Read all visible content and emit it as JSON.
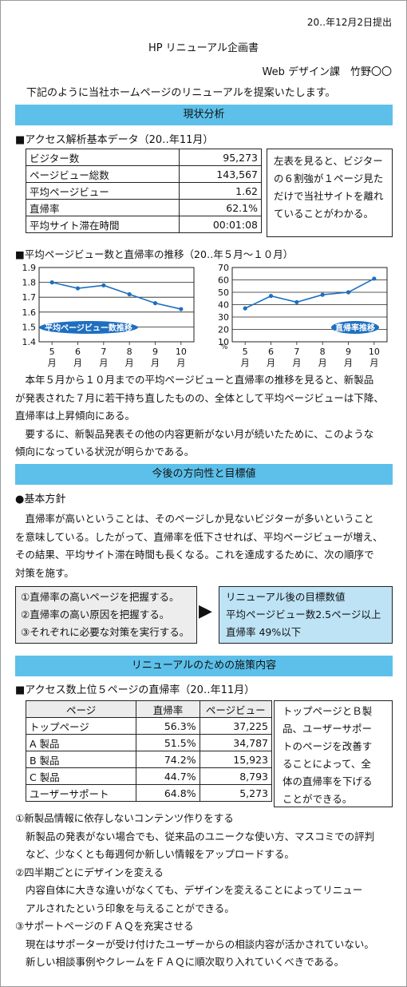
{
  "header": {
    "date": "20‥年12月2日提出",
    "title": "HP リニューアル企画書",
    "author": "Web デザイン課　竹野〇〇",
    "intro": "下記のように当社ホームページのリニューアルを提案いたします。"
  },
  "section1": {
    "heading": "現状分析",
    "table_title": "■アクセス解析基本データ（20‥年11月）",
    "rows": [
      {
        "label": "ビジター数",
        "value": "95,273"
      },
      {
        "label": "ページビュー総数",
        "value": "143,567"
      },
      {
        "label": "平均ページビュー",
        "value": "1.62"
      },
      {
        "label": "直帰率",
        "value": "62.1%"
      },
      {
        "label": "平均サイト滞在時間",
        "value": "00:01:08"
      }
    ],
    "comment": [
      "左表を見ると、ビジター",
      "の６割強が１ページ見た",
      "だけで当社サイトを離れ",
      "ていることがわかる。"
    ],
    "chart_title": "■平均ページビュー数と直帰率の推移（20‥年５月～１０月）",
    "para1": [
      "　本年５月から１０月までの平均ページビューと直帰率の推移を見ると、新製品",
      "が発表された７月に若干持ち直したものの、全体として平均ページビューは下降、",
      "直帰率は上昇傾向にある。",
      "　要するに、新製品発表その他の内容更新がない月が続いたために、このような",
      "傾向になっている状況が明らかである。"
    ]
  },
  "chart_data": [
    {
      "type": "line",
      "categories": [
        "5月",
        "6月",
        "7月",
        "8月",
        "9月",
        "10月"
      ],
      "category_labels": [
        [
          "5",
          "月"
        ],
        [
          "6",
          "月"
        ],
        [
          "7",
          "月"
        ],
        [
          "8",
          "月"
        ],
        [
          "9",
          "月"
        ],
        [
          "10",
          "月"
        ]
      ],
      "series": [
        {
          "name": "平均ページビュー数推移",
          "values": [
            1.8,
            1.76,
            1.78,
            1.72,
            1.66,
            1.62
          ],
          "color": "#1e6fc0"
        }
      ],
      "ylim": [
        1.4,
        1.9
      ],
      "yticks": [
        "1.4",
        "1.5",
        "1.6",
        "1.7",
        "1.8",
        "1.9"
      ],
      "grid": true
    },
    {
      "type": "line",
      "categories": [
        "5月",
        "6月",
        "7月",
        "8月",
        "9月",
        "10月"
      ],
      "category_labels": [
        [
          "5",
          "月"
        ],
        [
          "6",
          "月"
        ],
        [
          "7",
          "月"
        ],
        [
          "8",
          "月"
        ],
        [
          "9",
          "月"
        ],
        [
          "10",
          "月"
        ]
      ],
      "series": [
        {
          "name": "直帰率推移",
          "values": [
            37,
            47,
            42,
            48,
            50,
            61
          ],
          "color": "#1e6fc0"
        }
      ],
      "ylim": [
        10,
        70
      ],
      "yticks": [
        "10",
        "20",
        "30",
        "40",
        "50",
        "60",
        "70"
      ],
      "yunit": "%",
      "grid": true
    }
  ],
  "section2": {
    "heading": "今後の方向性と目標値",
    "subheading": "●基本方針",
    "para": [
      "　直帰率が高いということは、そのページしか見ないビジターが多いということ",
      "を意味している。したがって、直帰率を低下させれば、平均ページビューが増え、",
      "その結果、平均サイト滞在時間も長くなる。これを達成するために、次の順序で",
      "対策を施す。"
    ],
    "steps": [
      "①直帰率の高いページを把握する。",
      "②直帰率の高い原因を把握する。",
      "③それぞれに必要な対策を実行する。"
    ],
    "arrow": "▶",
    "targets": [
      "リニューアル後の目標数値",
      "平均ページビュー数2.5ページ以上",
      "直帰率 49%以下"
    ]
  },
  "section3": {
    "heading": "リニューアルのための施策内容",
    "table_title": "■アクセス数上位５ページの直帰率（20‥年11月）",
    "columns": [
      "ページ",
      "直帰率",
      "ページビュー"
    ],
    "rows": [
      {
        "page": "トップページ",
        "rate": "56.3%",
        "pv": "37,225"
      },
      {
        "page": "A 製品",
        "rate": "51.5%",
        "pv": "34,787"
      },
      {
        "page": "B 製品",
        "rate": "74.2%",
        "pv": "15,923"
      },
      {
        "page": "C 製品",
        "rate": "44.7%",
        "pv": "8,793"
      },
      {
        "page": "ユーザーサポート",
        "rate": "64.8%",
        "pv": "5,273"
      }
    ],
    "comment": [
      "トップページとＢ製",
      "品、ユーザーサポー",
      "トのページを改善す",
      "ることによって、全",
      "体の直帰率を下げる",
      "ことができる。"
    ],
    "items": [
      {
        "title": "①新製品情報に依存しないコンテンツ作りをする",
        "body": [
          "新製品の発表がない場合でも、従来品のユニークな使い方、マスコミでの評判",
          "など、少なくとも毎週何か新しい情報をアップロードする。"
        ]
      },
      {
        "title": "②四半期ごとにデザインを変える",
        "body": [
          "内容自体に大きな違いがなくても、デザインを変えることによってリニュー",
          "アルされたという印象を与えることができる。"
        ]
      },
      {
        "title": "③サポートページのＦＡＱを充実させる",
        "body": [
          "現在はサポーターが受け付けたユーザーからの相談内容が活かされていない。",
          "新しい相談事例やクレームをＦＡＱに順次取り入れていくべきである。"
        ]
      }
    ]
  }
}
